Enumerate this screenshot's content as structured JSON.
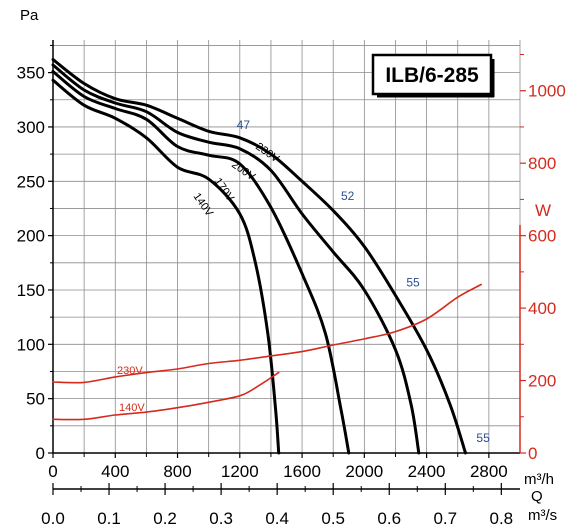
{
  "chart_data": {
    "type": "line",
    "title": "ILB/6-285",
    "x_axis": {
      "label": "m³/h",
      "range": [
        0,
        3000
      ],
      "ticks": [
        0,
        400,
        800,
        1200,
        1600,
        2000,
        2400,
        2800
      ]
    },
    "x_axis_secondary": {
      "label": "m³/s",
      "name": "Q",
      "ticks": [
        "0.0",
        "0.1",
        "0.2",
        "0.3",
        "0.4",
        "0.5",
        "0.6",
        "0.7",
        "0.8"
      ]
    },
    "y_axis": {
      "label": "Pa",
      "range": [
        0,
        380
      ],
      "ticks": [
        0,
        50,
        100,
        150,
        200,
        250,
        300,
        350
      ]
    },
    "y_axis_secondary": {
      "label": "W",
      "range": [
        0,
        1140
      ],
      "ticks": [
        0,
        200,
        400,
        600,
        800,
        1000
      ]
    },
    "grid": true,
    "series": [
      {
        "name": "230V",
        "axis": "pressure",
        "x": [
          0,
          200,
          400,
          600,
          800,
          1000,
          1200,
          1400,
          1600,
          1800,
          2000,
          2200,
          2400,
          2550,
          2650
        ],
        "y": [
          362,
          340,
          326,
          320,
          308,
          296,
          290,
          275,
          250,
          223,
          190,
          145,
          95,
          45,
          0
        ]
      },
      {
        "name": "200V",
        "axis": "pressure",
        "x": [
          0,
          200,
          400,
          600,
          800,
          1000,
          1200,
          1400,
          1600,
          1800,
          2000,
          2200,
          2300,
          2350
        ],
        "y": [
          357,
          334,
          322,
          314,
          295,
          286,
          280,
          260,
          220,
          185,
          150,
          95,
          45,
          0
        ]
      },
      {
        "name": "170V",
        "axis": "pressure",
        "x": [
          0,
          200,
          400,
          600,
          800,
          1000,
          1200,
          1400,
          1600,
          1750,
          1850,
          1900
        ],
        "y": [
          351,
          328,
          317,
          307,
          282,
          274,
          266,
          226,
          165,
          110,
          40,
          0
        ]
      },
      {
        "name": "140V",
        "axis": "pressure",
        "x": [
          0,
          200,
          400,
          600,
          800,
          1000,
          1200,
          1300,
          1380,
          1430,
          1450
        ],
        "y": [
          343,
          320,
          308,
          290,
          263,
          252,
          220,
          175,
          110,
          40,
          0
        ]
      },
      {
        "name": "230V",
        "axis": "power",
        "x": [
          0,
          200,
          400,
          600,
          800,
          1000,
          1200,
          1400,
          1600,
          1800,
          2000,
          2200,
          2400,
          2600,
          2750
        ],
        "y": [
          196,
          195,
          210,
          222,
          232,
          247,
          256,
          268,
          280,
          298,
          315,
          335,
          370,
          430,
          465
        ]
      },
      {
        "name": "140V",
        "axis": "power",
        "x": [
          0,
          200,
          400,
          600,
          800,
          1000,
          1200,
          1300,
          1450
        ],
        "y": [
          93,
          93,
          105,
          113,
          125,
          140,
          158,
          180,
          222
        ]
      }
    ],
    "annotations": [
      {
        "text": "47",
        "x": 1180,
        "y": 298
      },
      {
        "text": "52",
        "x": 1850,
        "y": 233
      },
      {
        "text": "55",
        "x": 2270,
        "y": 153
      },
      {
        "text": "55",
        "x": 2720,
        "y": 10
      }
    ]
  },
  "colors": {
    "curve": "#000000",
    "power": "#d42b1e",
    "level": "#2c4f8f",
    "grid": "#8c8c8c"
  }
}
